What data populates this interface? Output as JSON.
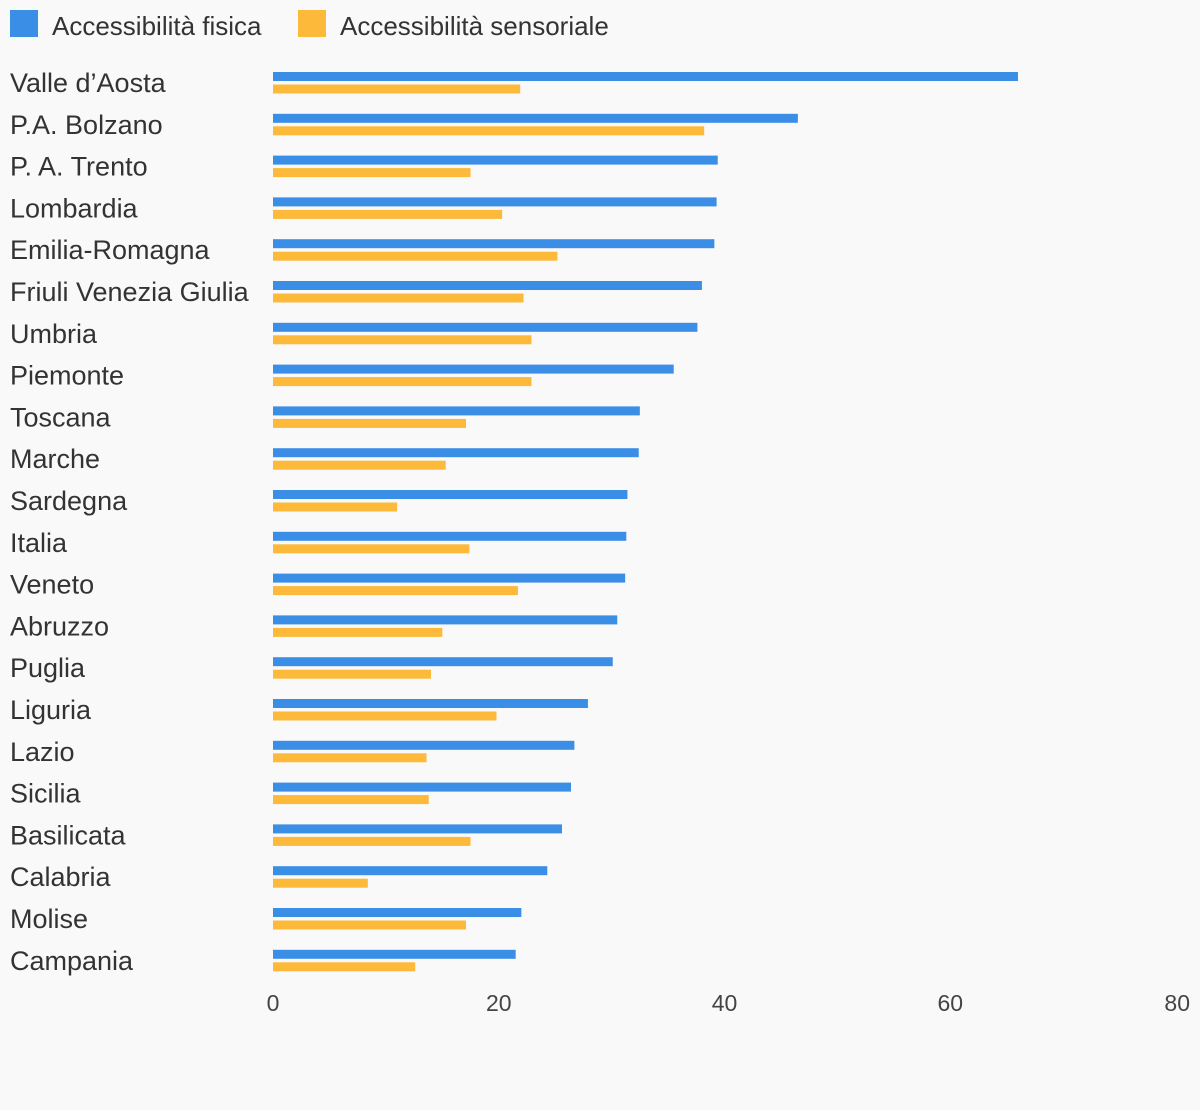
{
  "chart_data": {
    "type": "bar",
    "orientation": "horizontal",
    "categories": [
      "Valle d’Aosta",
      "P.A. Bolzano",
      "P. A. Trento",
      "Lombardia",
      "Emilia-Romagna",
      "Friuli Venezia Giulia",
      "Umbria",
      "Piemonte",
      "Toscana",
      "Marche",
      "Sardegna",
      "Italia",
      "Veneto",
      "Abruzzo",
      "Puglia",
      "Liguria",
      "Lazio",
      "Sicilia",
      "Basilicata",
      "Calabria",
      "Molise",
      "Campania"
    ],
    "series": [
      {
        "name": "Accessibilità fisica",
        "color": "#3a8ee6",
        "values": [
          66.0,
          46.5,
          39.4,
          39.3,
          39.1,
          38.0,
          37.6,
          35.5,
          32.5,
          32.4,
          31.4,
          31.3,
          31.2,
          30.5,
          30.1,
          27.9,
          26.7,
          26.4,
          25.6,
          24.3,
          22.0,
          21.5
        ]
      },
      {
        "name": "Accessibilità sensoriale",
        "color": "#fdb93a",
        "values": [
          21.9,
          38.2,
          17.5,
          20.3,
          25.2,
          22.2,
          22.9,
          22.9,
          17.1,
          15.3,
          11.0,
          17.4,
          21.7,
          15.0,
          14.0,
          19.8,
          13.6,
          13.8,
          17.5,
          8.4,
          17.1,
          12.6
        ]
      }
    ],
    "xlim": [
      0,
      80
    ],
    "xticks": [
      "0",
      "20",
      "40",
      "60",
      "80"
    ],
    "legend_position": "top-left",
    "grid": false,
    "title": "",
    "xlabel": "",
    "ylabel": ""
  }
}
